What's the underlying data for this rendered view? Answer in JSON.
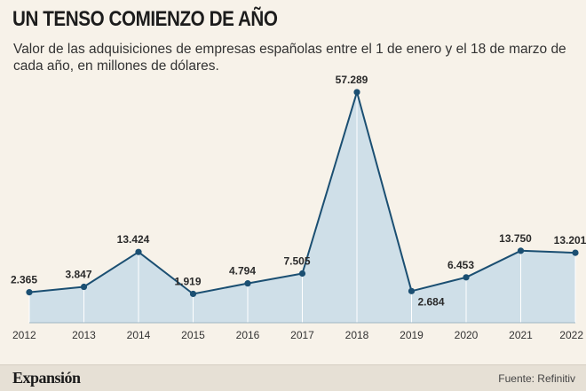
{
  "header": {
    "title": "UN TENSO COMIENZO DE AÑO",
    "subtitle": "Valor de las adquisiciones de empresas españolas entre el 1 de enero y el 18 de marzo de cada año, en millones de dólares."
  },
  "footer": {
    "brand": "Expansión",
    "source": "Fuente: Refinitiv"
  },
  "colors": {
    "line": "#1b4f72",
    "area": "#cfdfe8",
    "background": "#f7f2e9"
  },
  "chart_data": {
    "type": "area",
    "title": "UN TENSO COMIENZO DE AÑO",
    "xlabel": "",
    "ylabel": "",
    "categories": [
      "2012",
      "2013",
      "2014",
      "2015",
      "2016",
      "2017",
      "2018",
      "2019",
      "2020",
      "2021",
      "2022"
    ],
    "values": [
      2365,
      3847,
      13424,
      1919,
      4794,
      7505,
      57289,
      2684,
      6453,
      13750,
      13201
    ],
    "labels": [
      "2.365",
      "3.847",
      "13.424",
      "1.919",
      "4.794",
      "7.505",
      "57.289",
      "2.684",
      "6.453",
      "13.750",
      "13.201"
    ],
    "ylim": [
      -6000,
      58000
    ],
    "grid": false,
    "legend": "none"
  }
}
